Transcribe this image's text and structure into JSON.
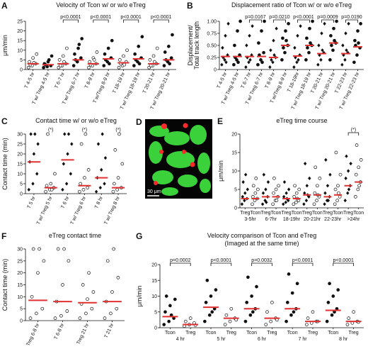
{
  "chart_data": [
    {
      "type": "dot",
      "panel": "A",
      "title": "Velocity of Tcon w/ or w/o eTreg",
      "ylabel": [
        "μm/min"
      ],
      "point_color": "#111",
      "mean_color": "#e03030",
      "categories": [
        "T 4-5 hr",
        "T w/ Treg 4-5 hr",
        "T 6-7 hr",
        "T w/ Treg 6-7 hr",
        "T 8-9 hr",
        "T w/Treg 8-9 hr",
        "T 18-19 hr",
        "T w/ Treg 18-19 hr",
        "T 20-21 hr",
        "T w/ Treg 20-21 hr"
      ],
      "markers": [
        "open",
        "circle",
        "open",
        "circle",
        "open",
        "circle",
        "open",
        "circle",
        "open",
        "circle"
      ],
      "values": [
        [
          1,
          2,
          3,
          4,
          6,
          8,
          2.5,
          3.5
        ],
        [
          1,
          1.5,
          2,
          3,
          4,
          7,
          2.5,
          5
        ],
        [
          1,
          2,
          3,
          5,
          7,
          11,
          2,
          4
        ],
        [
          2,
          4,
          6,
          8,
          11,
          16,
          5,
          13
        ],
        [
          1,
          2,
          3,
          4,
          6,
          9,
          2.5,
          5
        ],
        [
          2,
          4,
          6,
          8,
          11,
          15,
          5,
          3
        ],
        [
          1,
          2,
          4,
          5,
          7,
          10,
          3,
          2.5
        ],
        [
          2,
          4,
          6,
          8,
          12,
          17,
          5,
          3
        ],
        [
          1,
          2,
          3,
          5,
          7,
          11,
          2,
          4
        ],
        [
          2,
          4,
          6,
          9,
          12,
          18,
          5,
          3
        ]
      ],
      "means": [
        3,
        2.5,
        3,
        5,
        3,
        5.5,
        3.5,
        5.5,
        3,
        5
      ],
      "comparisons": [
        {
          "label": "p<0.0001",
          "pair": [
            2,
            3
          ]
        },
        {
          "label": "p<0.0001",
          "pair": [
            4,
            5
          ]
        },
        {
          "label": "p<0.0001",
          "pair": [
            6,
            7
          ]
        },
        {
          "label": "p<0.0001",
          "pair": [
            8,
            9
          ]
        }
      ],
      "ylim": [
        0,
        25
      ],
      "yticks": [
        0,
        5,
        10,
        15,
        20,
        25
      ]
    },
    {
      "type": "dot",
      "panel": "B",
      "title": "Displacement ratio of Tcon w/ or w/o eTreg",
      "ylabel": [
        "Displacement/",
        "Total track length"
      ],
      "point_color": "#111",
      "mean_color": "#e03030",
      "categories": [
        "T 4-5 hr",
        "T w/ Treg 4-5 hr",
        "T 6-7 hr",
        "T w/ Treg 6-7 hr",
        "T 8-9 hr",
        "T w/Treg 8-9 hr",
        "T 18-19hr",
        "T w/ Treg 18-19 hr",
        "T 20-21 hr",
        "T w/ Treg 20-21 hr",
        "T 22-23 hr",
        "T w/ Treg 22-23 hr"
      ],
      "markers": [
        "diamond",
        "circle",
        "diamond",
        "circle",
        "diamond",
        "circle",
        "diamond",
        "circle",
        "diamond",
        "circle",
        "diamond",
        "circle"
      ],
      "values": [
        [
          0.1,
          0.2,
          0.3,
          0.45,
          0.7,
          0.95,
          0.25,
          0.15
        ],
        [
          0.1,
          0.2,
          0.3,
          0.5,
          0.8,
          1,
          0.25,
          0.15
        ],
        [
          0.05,
          0.15,
          0.3,
          0.5,
          0.7,
          0.9,
          0.25,
          0.2
        ],
        [
          0.1,
          0.2,
          0.35,
          0.55,
          0.8,
          1,
          0.3,
          0.15
        ],
        [
          0.05,
          0.15,
          0.25,
          0.4,
          0.6,
          0.85,
          0.2,
          0.3
        ],
        [
          0.2,
          0.35,
          0.5,
          0.65,
          0.8,
          0.95,
          0.45,
          0.6
        ],
        [
          0.05,
          0.15,
          0.3,
          0.45,
          0.7,
          0.9,
          0.25,
          0.2
        ],
        [
          0.2,
          0.35,
          0.5,
          0.65,
          0.85,
          1,
          0.45,
          0.55
        ],
        [
          0.1,
          0.2,
          0.35,
          0.5,
          0.75,
          0.95,
          0.3,
          0.4
        ],
        [
          0.2,
          0.4,
          0.55,
          0.7,
          0.85,
          1,
          0.5,
          0.6
        ],
        [
          0.1,
          0.2,
          0.35,
          0.5,
          0.75,
          0.95,
          0.3,
          0.4
        ],
        [
          0.15,
          0.3,
          0.45,
          0.6,
          0.8,
          0.95,
          0.5,
          0.55
        ]
      ],
      "means": [
        0.27,
        0.27,
        0.27,
        0.27,
        0.25,
        0.5,
        0.28,
        0.5,
        0.33,
        0.55,
        0.33,
        0.47
      ],
      "comparisons": [
        {
          "label": "p=0.0167",
          "pair": [
            2,
            3
          ]
        },
        {
          "label": "p=0.0210",
          "pair": [
            4,
            5
          ]
        },
        {
          "label": "p<0.0001",
          "pair": [
            6,
            7
          ]
        },
        {
          "label": "p=0.0009",
          "pair": [
            8,
            9
          ]
        },
        {
          "label": "p=0.0190",
          "pair": [
            10,
            11
          ]
        }
      ],
      "ylim": [
        0,
        1
      ],
      "yticks": [
        0,
        0.25,
        {
          "value": 0.5,
          "label": "0.50"
        },
        0.75,
        {
          "value": 1,
          "label": "1.00"
        }
      ]
    },
    {
      "type": "dot",
      "panel": "C",
      "title": "Contact time w/ or w/o eTreg",
      "ylabel": [
        "Contact time (min)"
      ],
      "point_color": "#111",
      "mean_color": "#e03030",
      "categories": [
        "T 5 hr",
        "T w/ Treg 5 hr",
        "T 6 hr",
        "T w/ Treg 6 hr",
        "T 8 hr",
        "T w/ Treg 8 hr"
      ],
      "markers": [
        "diamond",
        "open",
        "diamond",
        "open",
        "diamond",
        "open"
      ],
      "values": [
        [
          2,
          5,
          10,
          16,
          20,
          25,
          30,
          30
        ],
        [
          1,
          2,
          3,
          4,
          5,
          10,
          30,
          2
        ],
        [
          2,
          5,
          10,
          15,
          20,
          25,
          30,
          30
        ],
        [
          1,
          2,
          3,
          5,
          8,
          12,
          25,
          30
        ],
        [
          1,
          3,
          5,
          8,
          12,
          18,
          25,
          30
        ],
        [
          1,
          2,
          3,
          5,
          8,
          15,
          22,
          30
        ]
      ],
      "means": [
        16,
        3,
        17,
        4,
        8,
        3
      ],
      "comparisons": [
        {
          "label": "(*)",
          "pair": [
            1,
            1
          ]
        },
        {
          "label": "(*)",
          "pair": [
            3,
            3
          ]
        },
        {
          "label": "(*)",
          "pair": [
            5,
            5
          ]
        }
      ],
      "ylim": [
        0,
        30
      ],
      "yticks": [
        0,
        5,
        10,
        15,
        20,
        25,
        30
      ]
    },
    {
      "type": "image",
      "panel": "D",
      "scale_label": "30 μm"
    },
    {
      "type": "dot",
      "panel": "E",
      "title": "eTreg time course",
      "ylabel": [
        "μm/min"
      ],
      "point_color": "#111",
      "mean_color": "#e03030",
      "categories": [
        "Treg",
        "Tcon",
        "Treg",
        "Tcon",
        "Treg",
        "Tcon",
        "Treg",
        "Tcon",
        "Treg",
        "Tcon",
        "Treg",
        "Tcon"
      ],
      "groups": [
        "3-5hr",
        "6-7hr",
        "18-19hr",
        "20-21hr",
        "22-23hr",
        ">24hr"
      ],
      "markers": [
        "diamond",
        "open",
        "diamond",
        "open",
        "diamond",
        "open",
        "diamond",
        "open",
        "diamond",
        "open",
        "diamond",
        "open"
      ],
      "values": [
        [
          1,
          2,
          2.5,
          3,
          4,
          5,
          7,
          9
        ],
        [
          1,
          2,
          2.5,
          3,
          4,
          5,
          6,
          8
        ],
        [
          1,
          2,
          3,
          4,
          5,
          7,
          9,
          1.5
        ],
        [
          1,
          2,
          3,
          4,
          5,
          6,
          8,
          2
        ],
        [
          1,
          1.5,
          2,
          3,
          4,
          5,
          7,
          2.5
        ],
        [
          1,
          1.5,
          2,
          3,
          4,
          5,
          6,
          2.5
        ],
        [
          1,
          2,
          3,
          4,
          6,
          8,
          12,
          3.5
        ],
        [
          1,
          2,
          3,
          4,
          6,
          8,
          11,
          3.5
        ],
        [
          1,
          2,
          3,
          4,
          6,
          9,
          13,
          2
        ],
        [
          1,
          2,
          3,
          5,
          6,
          9,
          15,
          4
        ],
        [
          2,
          4,
          6,
          8,
          10,
          12,
          14,
          5
        ],
        [
          3,
          5,
          7,
          9,
          11,
          13,
          17,
          6
        ]
      ],
      "means": [
        2.5,
        2.5,
        3,
        3,
        2.5,
        2.5,
        3.5,
        3.5,
        3,
        3.5,
        6,
        7
      ],
      "comparisons": [
        {
          "label": "(*)",
          "pair": [
            10,
            11
          ]
        }
      ],
      "ylim": [
        0,
        20
      ],
      "yticks": [
        0,
        5,
        10,
        15,
        20
      ]
    },
    {
      "type": "dot",
      "panel": "F",
      "title": "eTreg contact time",
      "ylabel": [
        "Contact time (min)"
      ],
      "point_color": "#111",
      "mean_color": "#e03030",
      "categories": [
        "Treg 6-8 hr",
        "T 6-8 hr",
        "Treg 21 hr",
        "T 21 hr"
      ],
      "markers": [
        "open",
        "open",
        "open",
        "open"
      ],
      "values": [
        [
          1,
          3,
          5,
          10,
          20,
          25,
          30,
          30
        ],
        [
          1,
          2,
          4,
          8,
          15,
          25,
          30,
          30
        ],
        [
          1,
          3,
          5,
          7,
          9,
          12,
          15,
          20
        ],
        [
          1,
          3,
          5,
          8,
          12,
          18,
          25,
          30
        ]
      ],
      "means": [
        8.5,
        8,
        7.5,
        8
      ],
      "comparisons": [],
      "ylim": [
        0,
        30
      ],
      "yticks": [
        0,
        5,
        10,
        15,
        20,
        25,
        30
      ]
    },
    {
      "type": "dot",
      "panel": "G",
      "title": "Velocity comparison of Tcon and eTreg",
      "subtitle": "(Imaged at the same time)",
      "ylabel": [
        "μm/min"
      ],
      "point_color": "#111",
      "mean_color": "#e03030",
      "categories": [
        "Tcon",
        "Treg",
        "Tcon",
        "Treg",
        "Tcon",
        "Treg",
        "Tcon",
        "Treg",
        "Tcon",
        "Treg"
      ],
      "groups": [
        "4 hr",
        "5 hr",
        "6 hr",
        "7 hr",
        "8 hr"
      ],
      "markers": [
        "circle",
        "open",
        "circle",
        "open",
        "circle",
        "open",
        "circle",
        "open",
        "circle",
        "open"
      ],
      "values": [
        [
          1,
          2,
          3,
          5,
          7,
          9,
          10,
          4
        ],
        [
          0.5,
          1,
          1.5,
          2,
          3,
          0.8
        ],
        [
          2,
          4,
          6,
          8,
          10,
          12,
          15,
          5
        ],
        [
          1,
          2,
          3,
          4,
          6,
          2.5
        ],
        [
          2,
          4,
          6,
          8,
          10,
          13,
          16,
          5
        ],
        [
          1,
          2,
          3,
          5,
          8,
          2.5
        ],
        [
          2,
          4,
          6,
          8,
          11,
          14,
          17,
          5
        ],
        [
          1,
          1.5,
          2,
          3,
          5,
          2
        ],
        [
          2,
          4,
          6,
          8,
          10,
          12,
          14,
          5
        ],
        [
          1,
          1.5,
          2,
          3,
          5,
          1.8
        ]
      ],
      "means": [
        3.5,
        1,
        6.5,
        3,
        6,
        3,
        6,
        2,
        5.5,
        2
      ],
      "comparisons": [
        {
          "label": "p=0.0002",
          "pair": [
            0,
            1
          ]
        },
        {
          "label": "p<0.0001",
          "pair": [
            2,
            3
          ]
        },
        {
          "label": "p=0.0032",
          "pair": [
            4,
            5
          ]
        },
        {
          "label": "p<0.0001",
          "pair": [
            6,
            7
          ]
        },
        {
          "label": "p<0.0001",
          "pair": [
            8,
            9
          ]
        }
      ],
      "ylim": [
        0,
        20
      ],
      "yticks": [
        0,
        5,
        10,
        15,
        20
      ]
    }
  ]
}
